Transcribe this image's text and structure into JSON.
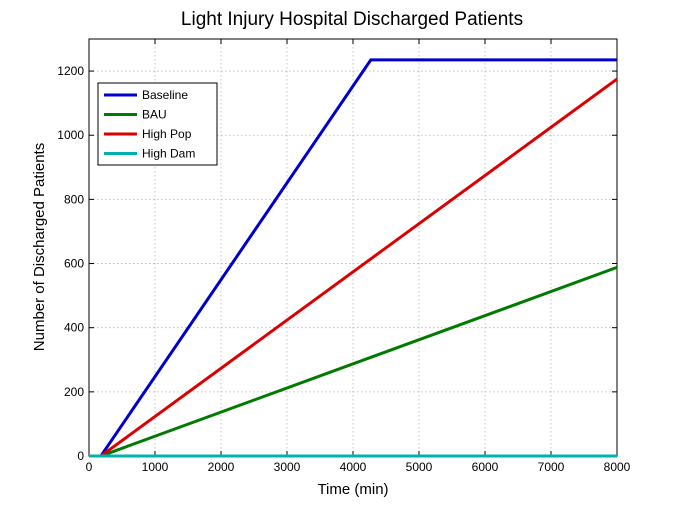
{
  "chart_data": {
    "type": "line",
    "title": "Light Injury Hospital Discharged Patients",
    "xlabel": "Time (min)",
    "ylabel": "Number of Discharged Patients",
    "xlim": [
      0,
      8000
    ],
    "ylim": [
      0,
      1300
    ],
    "xticks": [
      0,
      1000,
      2000,
      3000,
      4000,
      5000,
      6000,
      7000,
      8000
    ],
    "yticks": [
      0,
      200,
      400,
      600,
      800,
      1000,
      1200
    ],
    "grid": true,
    "legend_position": "top-left",
    "series": [
      {
        "name": "Baseline",
        "color": "#0000cc",
        "x": [
          0,
          180,
          4270,
          8000
        ],
        "y": [
          0,
          0,
          1235,
          1235
        ]
      },
      {
        "name": "BAU",
        "color": "#007a00",
        "x": [
          0,
          180,
          8000
        ],
        "y": [
          0,
          0,
          588
        ]
      },
      {
        "name": "High Pop",
        "color": "#dd0000",
        "x": [
          0,
          180,
          8000
        ],
        "y": [
          0,
          0,
          1175
        ]
      },
      {
        "name": "High Dam",
        "color": "#00b2b2",
        "x": [
          0,
          8000
        ],
        "y": [
          0,
          0
        ]
      }
    ]
  }
}
